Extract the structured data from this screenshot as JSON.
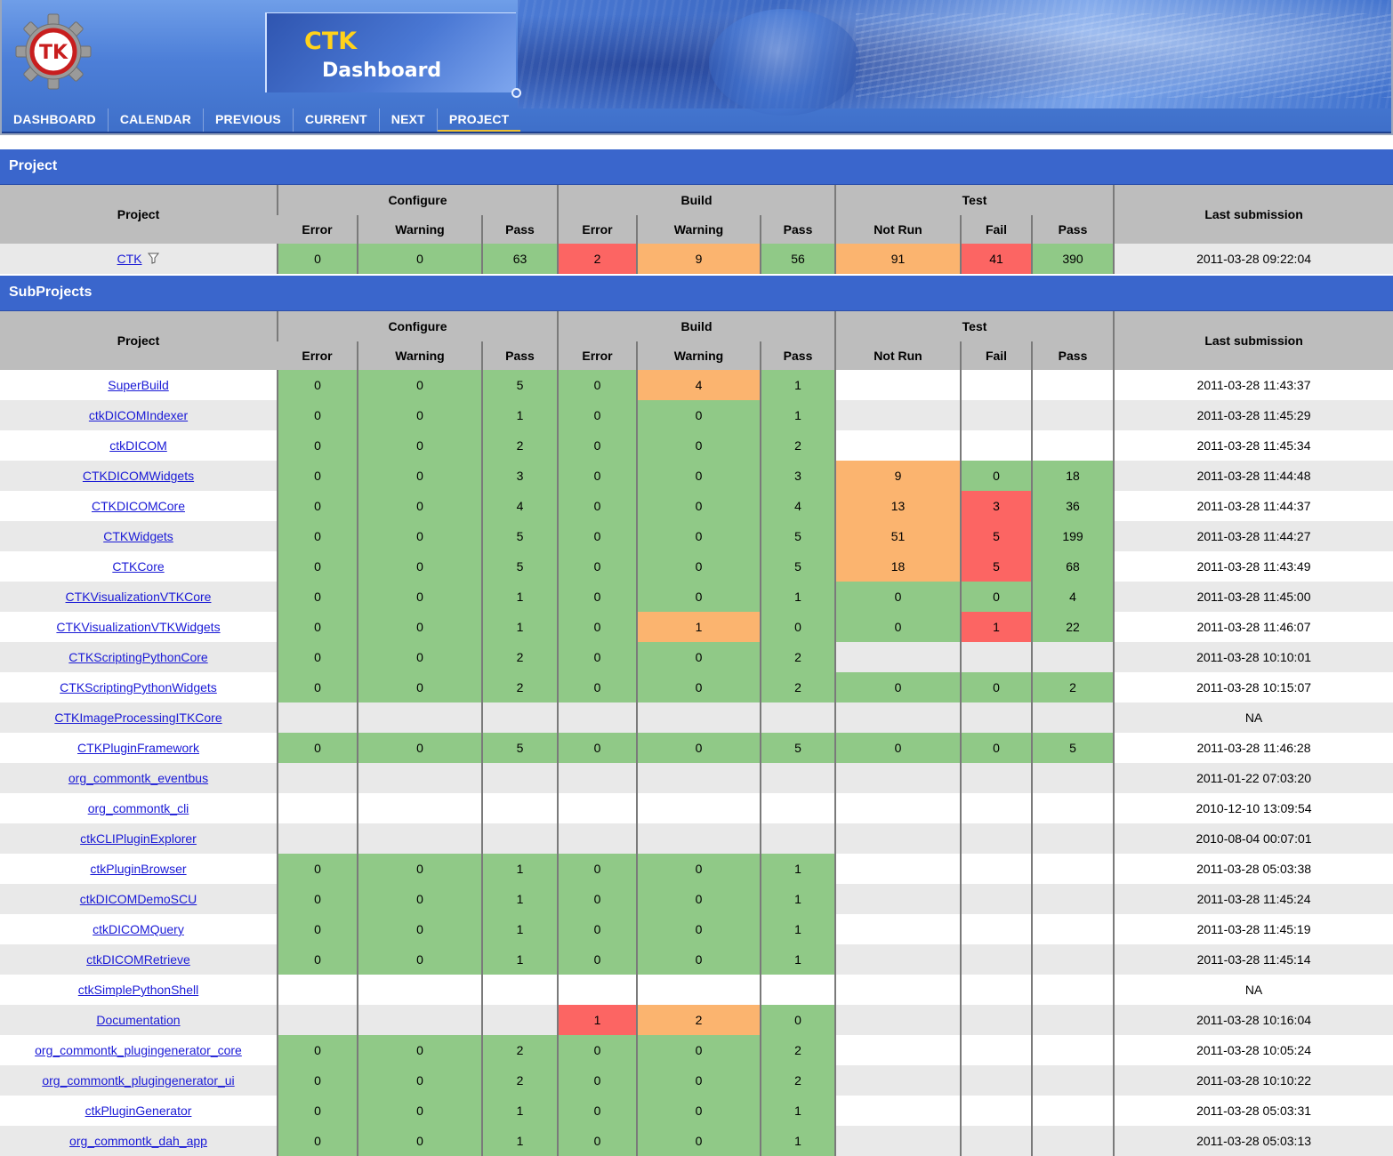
{
  "header": {
    "app_name": "CTK",
    "app_subtitle": "Dashboard",
    "logo_text": "TK"
  },
  "nav": [
    {
      "label": "DASHBOARD"
    },
    {
      "label": "CALENDAR"
    },
    {
      "label": "PREVIOUS"
    },
    {
      "label": "CURRENT"
    },
    {
      "label": "NEXT"
    },
    {
      "label": "PROJECT",
      "active": true
    }
  ],
  "project_section": {
    "title": "Project",
    "headers": {
      "project": "Project",
      "configure": "Configure",
      "build": "Build",
      "test": "Test",
      "last_submission": "Last submission",
      "error": "Error",
      "warning": "Warning",
      "pass": "Pass",
      "not_run": "Not Run",
      "fail": "Fail"
    },
    "row": {
      "name": "CTK",
      "configure_error": "0",
      "configure_warning": "0",
      "configure_pass": "63",
      "build_error": "2",
      "build_warning": "9",
      "build_pass": "56",
      "test_notrun": "91",
      "test_fail": "41",
      "test_pass": "390",
      "last": "2011-03-28 09:22:04"
    }
  },
  "subprojects_section": {
    "title": "SubProjects",
    "headers": {
      "project": "Project",
      "configure": "Configure",
      "build": "Build",
      "test": "Test",
      "last_submission": "Last submission",
      "error": "Error",
      "warning": "Warning",
      "pass": "Pass",
      "not_run": "Not Run",
      "fail": "Fail"
    },
    "rows": [
      {
        "name": "SuperBuild",
        "cfg": [
          "0",
          "0",
          "5"
        ],
        "bld": [
          "0",
          "4",
          "1"
        ],
        "tst": [
          "",
          "",
          ""
        ],
        "last": "2011-03-28 11:43:37"
      },
      {
        "name": "ctkDICOMIndexer",
        "cfg": [
          "0",
          "0",
          "1"
        ],
        "bld": [
          "0",
          "0",
          "1"
        ],
        "tst": [
          "",
          "",
          ""
        ],
        "last": "2011-03-28 11:45:29"
      },
      {
        "name": "ctkDICOM",
        "cfg": [
          "0",
          "0",
          "2"
        ],
        "bld": [
          "0",
          "0",
          "2"
        ],
        "tst": [
          "",
          "",
          ""
        ],
        "last": "2011-03-28 11:45:34"
      },
      {
        "name": "CTKDICOMWidgets",
        "cfg": [
          "0",
          "0",
          "3"
        ],
        "bld": [
          "0",
          "0",
          "3"
        ],
        "tst": [
          "9",
          "0",
          "18"
        ],
        "last": "2011-03-28 11:44:48"
      },
      {
        "name": "CTKDICOMCore",
        "cfg": [
          "0",
          "0",
          "4"
        ],
        "bld": [
          "0",
          "0",
          "4"
        ],
        "tst": [
          "13",
          "3",
          "36"
        ],
        "last": "2011-03-28 11:44:37"
      },
      {
        "name": "CTKWidgets",
        "cfg": [
          "0",
          "0",
          "5"
        ],
        "bld": [
          "0",
          "0",
          "5"
        ],
        "tst": [
          "51",
          "5",
          "199"
        ],
        "last": "2011-03-28 11:44:27"
      },
      {
        "name": "CTKCore",
        "cfg": [
          "0",
          "0",
          "5"
        ],
        "bld": [
          "0",
          "0",
          "5"
        ],
        "tst": [
          "18",
          "5",
          "68"
        ],
        "last": "2011-03-28 11:43:49"
      },
      {
        "name": "CTKVisualizationVTKCore",
        "cfg": [
          "0",
          "0",
          "1"
        ],
        "bld": [
          "0",
          "0",
          "1"
        ],
        "tst": [
          "0",
          "0",
          "4"
        ],
        "last": "2011-03-28 11:45:00"
      },
      {
        "name": "CTKVisualizationVTKWidgets",
        "cfg": [
          "0",
          "0",
          "1"
        ],
        "bld": [
          "0",
          "1",
          "0"
        ],
        "tst": [
          "0",
          "1",
          "22"
        ],
        "last": "2011-03-28 11:46:07"
      },
      {
        "name": "CTKScriptingPythonCore",
        "cfg": [
          "0",
          "0",
          "2"
        ],
        "bld": [
          "0",
          "0",
          "2"
        ],
        "tst": [
          "",
          "",
          ""
        ],
        "last": "2011-03-28 10:10:01"
      },
      {
        "name": "CTKScriptingPythonWidgets",
        "cfg": [
          "0",
          "0",
          "2"
        ],
        "bld": [
          "0",
          "0",
          "2"
        ],
        "tst": [
          "0",
          "0",
          "2"
        ],
        "last": "2011-03-28 10:15:07"
      },
      {
        "name": "CTKImageProcessingITKCore",
        "cfg": [
          "",
          "",
          ""
        ],
        "bld": [
          "",
          "",
          ""
        ],
        "tst": [
          "",
          "",
          ""
        ],
        "last": "NA"
      },
      {
        "name": "CTKPluginFramework",
        "cfg": [
          "0",
          "0",
          "5"
        ],
        "bld": [
          "0",
          "0",
          "5"
        ],
        "tst": [
          "0",
          "0",
          "5"
        ],
        "last": "2011-03-28 11:46:28"
      },
      {
        "name": "org_commontk_eventbus",
        "cfg": [
          "",
          "",
          ""
        ],
        "bld": [
          "",
          "",
          ""
        ],
        "tst": [
          "",
          "",
          ""
        ],
        "last": "2011-01-22 07:03:20"
      },
      {
        "name": "org_commontk_cli",
        "cfg": [
          "",
          "",
          ""
        ],
        "bld": [
          "",
          "",
          ""
        ],
        "tst": [
          "",
          "",
          ""
        ],
        "last": "2010-12-10 13:09:54"
      },
      {
        "name": "ctkCLIPluginExplorer",
        "cfg": [
          "",
          "",
          ""
        ],
        "bld": [
          "",
          "",
          ""
        ],
        "tst": [
          "",
          "",
          ""
        ],
        "last": "2010-08-04 00:07:01"
      },
      {
        "name": "ctkPluginBrowser",
        "cfg": [
          "0",
          "0",
          "1"
        ],
        "bld": [
          "0",
          "0",
          "1"
        ],
        "tst": [
          "",
          "",
          ""
        ],
        "last": "2011-03-28 05:03:38"
      },
      {
        "name": "ctkDICOMDemoSCU",
        "cfg": [
          "0",
          "0",
          "1"
        ],
        "bld": [
          "0",
          "0",
          "1"
        ],
        "tst": [
          "",
          "",
          ""
        ],
        "last": "2011-03-28 11:45:24"
      },
      {
        "name": "ctkDICOMQuery",
        "cfg": [
          "0",
          "0",
          "1"
        ],
        "bld": [
          "0",
          "0",
          "1"
        ],
        "tst": [
          "",
          "",
          ""
        ],
        "last": "2011-03-28 11:45:19"
      },
      {
        "name": "ctkDICOMRetrieve",
        "cfg": [
          "0",
          "0",
          "1"
        ],
        "bld": [
          "0",
          "0",
          "1"
        ],
        "tst": [
          "",
          "",
          ""
        ],
        "last": "2011-03-28 11:45:14"
      },
      {
        "name": "ctkSimplePythonShell",
        "cfg": [
          "",
          "",
          ""
        ],
        "bld": [
          "",
          "",
          ""
        ],
        "tst": [
          "",
          "",
          ""
        ],
        "last": "NA"
      },
      {
        "name": "Documentation",
        "cfg": [
          "",
          "",
          ""
        ],
        "bld": [
          "1",
          "2",
          "0"
        ],
        "tst": [
          "",
          "",
          ""
        ],
        "last": "2011-03-28 10:16:04"
      },
      {
        "name": "org_commontk_plugingenerator_core",
        "cfg": [
          "0",
          "0",
          "2"
        ],
        "bld": [
          "0",
          "0",
          "2"
        ],
        "tst": [
          "",
          "",
          ""
        ],
        "last": "2011-03-28 10:05:24"
      },
      {
        "name": "org_commontk_plugingenerator_ui",
        "cfg": [
          "0",
          "0",
          "2"
        ],
        "bld": [
          "0",
          "0",
          "2"
        ],
        "tst": [
          "",
          "",
          ""
        ],
        "last": "2011-03-28 10:10:22"
      },
      {
        "name": "ctkPluginGenerator",
        "cfg": [
          "0",
          "0",
          "1"
        ],
        "bld": [
          "0",
          "0",
          "1"
        ],
        "tst": [
          "",
          "",
          ""
        ],
        "last": "2011-03-28 05:03:31"
      },
      {
        "name": "org_commontk_dah_app",
        "cfg": [
          "0",
          "0",
          "1"
        ],
        "bld": [
          "0",
          "0",
          "1"
        ],
        "tst": [
          "",
          "",
          ""
        ],
        "last": "2011-03-28 05:03:13"
      }
    ]
  },
  "colors": {
    "ok": "#90c987",
    "warning": "#fbb46f",
    "error": "#fc6563",
    "section_bar": "#3a66cc",
    "header_gray": "#bdbdbd",
    "link": "#1a1ad6",
    "nav_active_underline": "#f0c230",
    "title_accent": "#ffd21a"
  },
  "icons": {
    "logo": "ctk-gear-logo",
    "filter": "filter-icon"
  }
}
